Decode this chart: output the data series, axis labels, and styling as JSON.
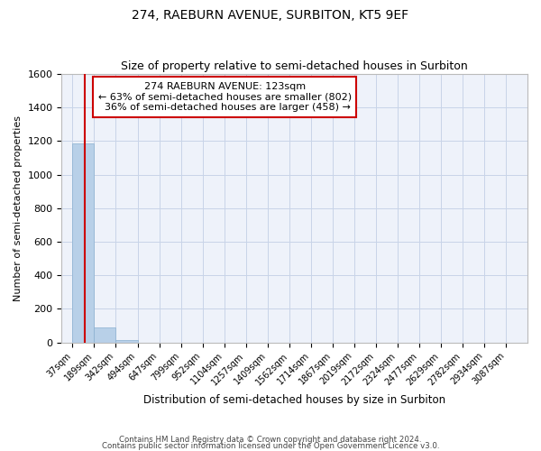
{
  "title1": "274, RAEBURN AVENUE, SURBITON, KT5 9EF",
  "title2": "Size of property relative to semi-detached houses in Surbiton",
  "xlabel": "Distribution of semi-detached houses by size in Surbiton",
  "ylabel": "Number of semi-detached properties",
  "categories": [
    "37sqm",
    "189sqm",
    "342sqm",
    "494sqm",
    "647sqm",
    "799sqm",
    "952sqm",
    "1104sqm",
    "1257sqm",
    "1409sqm",
    "1562sqm",
    "1714sqm",
    "1867sqm",
    "2019sqm",
    "2172sqm",
    "2324sqm",
    "2477sqm",
    "2629sqm",
    "2782sqm",
    "2934sqm",
    "3087sqm"
  ],
  "values": [
    1185,
    90,
    15,
    0,
    0,
    0,
    0,
    0,
    0,
    0,
    0,
    0,
    0,
    0,
    0,
    0,
    0,
    0,
    0,
    0,
    0
  ],
  "bar_color": "#b8d0e8",
  "bar_edge_color": "#8ab0d0",
  "vline_color": "#cc0000",
  "annotation_box_color": "#cc0000",
  "ylim": [
    0,
    1600
  ],
  "yticks": [
    0,
    200,
    400,
    600,
    800,
    1000,
    1200,
    1400,
    1600
  ],
  "grid_color": "#c8d4e8",
  "background_color": "#eef2fa",
  "property_label": "274 RAEBURN AVENUE: 123sqm",
  "smaller_pct": 63,
  "smaller_count": 802,
  "larger_pct": 36,
  "larger_count": 458,
  "vline_position": 0,
  "footer1": "Contains HM Land Registry data © Crown copyright and database right 2024.",
  "footer2": "Contains public sector information licensed under the Open Government Licence v3.0."
}
